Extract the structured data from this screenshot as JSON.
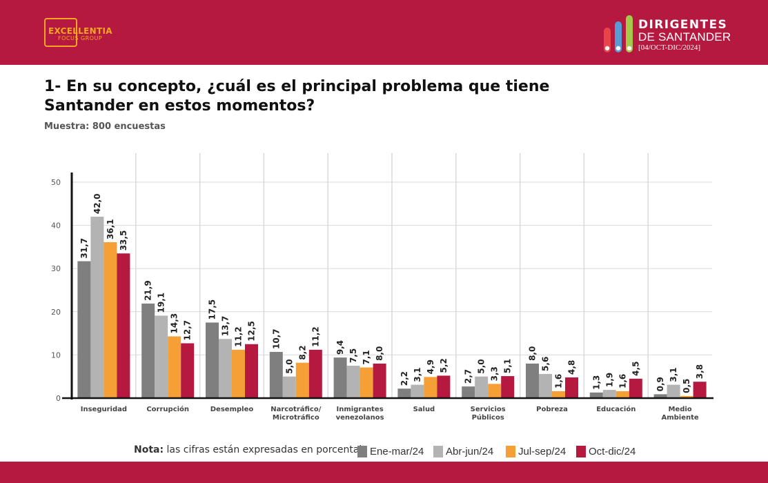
{
  "header": {
    "left_logo": {
      "brand": "EXCELLENTIA",
      "sub": "FOCUS GROUP"
    },
    "right_logo": {
      "line1": "DIRIGENTES",
      "line2": "DE SANTANDER",
      "line3": "[04/OCT-DIC/2024]"
    },
    "bar_color": "#b5193f"
  },
  "question": {
    "title": "1- En su concepto, ¿cuál es el principal problema que tiene Santander en estos momentos?",
    "sample": "Muestra: 800 encuestas"
  },
  "legend": {
    "note_bold": "Nota:",
    "note_text": "las cifras están expresadas en porcentaje"
  },
  "chart_data": {
    "type": "bar",
    "categories": [
      [
        "Inseguridad"
      ],
      [
        "Corrupción"
      ],
      [
        "Desempleo"
      ],
      [
        "Narcotráfico/",
        "Microtráfico"
      ],
      [
        "Inmigrantes",
        "venezolanos"
      ],
      [
        "Salud"
      ],
      [
        "Servicios",
        "Públicos"
      ],
      [
        "Pobreza"
      ],
      [
        "Educación"
      ],
      [
        "Medio",
        "Ambiente"
      ]
    ],
    "series": [
      {
        "name": "Ene-mar/24",
        "color": "#7f7f7f",
        "values": [
          31.7,
          21.9,
          17.5,
          10.7,
          9.4,
          2.2,
          2.7,
          8.0,
          1.3,
          0.9
        ]
      },
      {
        "name": "Abr-jun/24",
        "color": "#b3b3b3",
        "values": [
          42.0,
          19.1,
          13.7,
          5.0,
          7.5,
          3.1,
          5.0,
          5.6,
          1.9,
          3.1
        ]
      },
      {
        "name": "Jul-sep/24",
        "color": "#f5a036",
        "values": [
          36.1,
          14.3,
          11.2,
          8.2,
          7.1,
          4.9,
          3.3,
          1.6,
          1.6,
          0.5
        ]
      },
      {
        "name": "Oct-dic/24",
        "color": "#b5193f",
        "values": [
          33.5,
          12.7,
          12.5,
          11.2,
          8.0,
          5.2,
          5.1,
          4.8,
          4.5,
          3.8
        ]
      }
    ],
    "data_labels": [
      [
        "31,7",
        "21,9",
        "17,5",
        "10,7",
        "9,4",
        "2,2",
        "2,7",
        "8,0",
        "1,3",
        "0,9"
      ],
      [
        "42,0",
        "19,1",
        "13,7",
        "5,0",
        "7,5",
        "3,1",
        "5,0",
        "5,6",
        "1,9",
        "3,1"
      ],
      [
        "36,1",
        "14,3",
        "11,2",
        "8,2",
        "7,1",
        "4,9",
        "3,3",
        "1,6",
        "1,6",
        "0,5"
      ],
      [
        "33,5",
        "12,7",
        "12,5",
        "11,2",
        "8,0",
        "5,2",
        "5,1",
        "4,8",
        "4,5",
        "3,8"
      ]
    ],
    "yticks": [
      "0",
      "10",
      "20",
      "30",
      "40",
      "50"
    ],
    "ylim": [
      0,
      50
    ],
    "grid": true,
    "legend_position": "bottom"
  }
}
